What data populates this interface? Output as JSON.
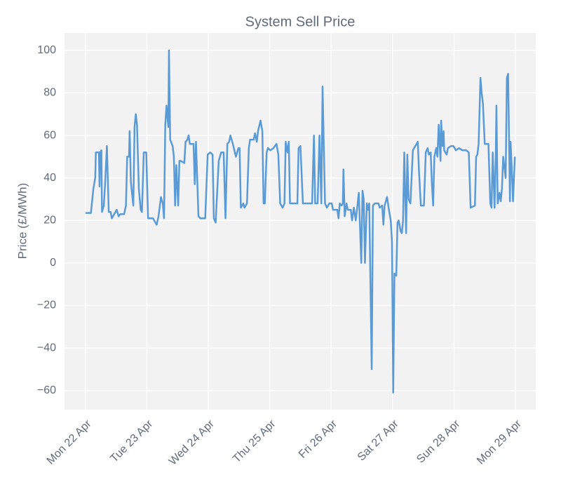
{
  "chart_data": {
    "type": "line",
    "title": "System Sell Price",
    "ylabel": "Price (£/MWh)",
    "color": "#5b9bd5",
    "grid": true,
    "xlim": [
      -0.34,
      7.33
    ],
    "ylim": [
      -69,
      108.2
    ],
    "xticks": [
      {
        "value": 0,
        "label": "Mon 22 Apr"
      },
      {
        "value": 1,
        "label": "Tue 23 Apr"
      },
      {
        "value": 2,
        "label": "Wed 24 Apr"
      },
      {
        "value": 3,
        "label": "Thu 25 Apr"
      },
      {
        "value": 4,
        "label": "Fri 26 Apr"
      },
      {
        "value": 5,
        "label": "Sat 27 Apr"
      },
      {
        "value": 6,
        "label": "Sun 28 Apr"
      },
      {
        "value": 7,
        "label": "Mon 29 Apr"
      }
    ],
    "yticks": [
      {
        "value": -60,
        "label": "−60"
      },
      {
        "value": -40,
        "label": "−40"
      },
      {
        "value": -20,
        "label": "−20"
      },
      0,
      20,
      40,
      60,
      80,
      100
    ],
    "x": [
      0,
      0.09,
      0.13,
      0.16,
      0.17,
      0.22,
      0.23,
      0.24,
      0.26,
      0.27,
      0.3,
      0.32,
      0.35,
      0.38,
      0.41,
      0.43,
      0.47,
      0.51,
      0.54,
      0.57,
      0.63,
      0.66,
      0.68,
      0.71,
      0.72,
      0.74,
      0.78,
      0.8,
      0.82,
      0.84,
      0.87,
      0.9,
      0.92,
      0.95,
      0.99,
      1.02,
      1.1,
      1.14,
      1.16,
      1.19,
      1.23,
      1.26,
      1.28,
      1.3,
      1.32,
      1.35,
      1.36,
      1.38,
      1.42,
      1.44,
      1.46,
      1.48,
      1.51,
      1.53,
      1.55,
      1.61,
      1.63,
      1.66,
      1.68,
      1.7,
      1.76,
      1.78,
      1.8,
      1.84,
      1.87,
      1.95,
      1.99,
      2.03,
      2.07,
      2.09,
      2.12,
      2.17,
      2.21,
      2.25,
      2.28,
      2.31,
      2.34,
      2.36,
      2.4,
      2.45,
      2.49,
      2.51,
      2.53,
      2.57,
      2.59,
      2.63,
      2.66,
      2.68,
      2.74,
      2.76,
      2.79,
      2.81,
      2.85,
      2.88,
      2.9,
      2.92,
      2.95,
      2.97,
      3.01,
      3.06,
      3.11,
      3.14,
      3.17,
      3.21,
      3.24,
      3.26,
      3.29,
      3.31,
      3.33,
      3.45,
      3.47,
      3.5,
      3.54,
      3.69,
      3.72,
      3.74,
      3.78,
      3.81,
      3.84,
      3.86,
      3.88,
      3.9,
      3.93,
      3.97,
      4.01,
      4.03,
      4.1,
      4.12,
      4.14,
      4.17,
      4.19,
      4.2,
      4.22,
      4.25,
      4.27,
      4.32,
      4.34,
      4.37,
      4.4,
      4.42,
      4.45,
      4.49,
      4.51,
      4.53,
      4.55,
      4.58,
      4.6,
      4.62,
      4.66,
      4.68,
      4.71,
      4.77,
      4.79,
      4.83,
      4.85,
      4.87,
      4.91,
      4.94,
      4.97,
      4.99,
      5.01,
      5.03,
      5.06,
      5.08,
      5.1,
      5.13,
      5.15,
      5.17,
      5.19,
      5.22,
      5.24,
      5.26,
      5.29,
      5.33,
      5.37,
      5.41,
      5.43,
      5.46,
      5.51,
      5.54,
      5.57,
      5.59,
      5.62,
      5.64,
      5.66,
      5.68,
      5.71,
      5.73,
      5.75,
      5.78,
      5.79,
      5.81,
      5.83,
      5.84,
      5.88,
      5.9,
      5.95,
      5.99,
      6.03,
      6.08,
      6.14,
      6.2,
      6.24,
      6.27,
      6.34,
      6.36,
      6.38,
      6.4,
      6.43,
      6.45,
      6.47,
      6.5,
      6.56,
      6.59,
      6.61,
      6.63,
      6.66,
      6.68,
      6.69,
      6.71,
      6.74,
      6.76,
      6.78,
      6.8,
      6.84,
      6.86,
      6.88,
      6.91,
      6.92,
      6.94,
      6.96,
      6.99
    ],
    "values": [
      23.5,
      23.5,
      35,
      40,
      52,
      52,
      36,
      52,
      53,
      24,
      27,
      37,
      55,
      24,
      24,
      21,
      23,
      25,
      22,
      23,
      23,
      27,
      50,
      50,
      62,
      38,
      27,
      64,
      70,
      65,
      35,
      25,
      24,
      52,
      52,
      21,
      21,
      19,
      18,
      22,
      31,
      28,
      21,
      65,
      74,
      64,
      100,
      58,
      55,
      50,
      27,
      46,
      27,
      48,
      48,
      47,
      57,
      58,
      60,
      56,
      56,
      37,
      57,
      22,
      21,
      21,
      51,
      52,
      51,
      21,
      19,
      48,
      52,
      52,
      21,
      56,
      57,
      60,
      56,
      50,
      54,
      54,
      26,
      28,
      26,
      28,
      54,
      58,
      58,
      61,
      57,
      62,
      67,
      62,
      28,
      28,
      52,
      54,
      53,
      54,
      56,
      51,
      28,
      26,
      28,
      57,
      52,
      57,
      28,
      28,
      54,
      55,
      28,
      28,
      60,
      28,
      28,
      60,
      28,
      83,
      55,
      28,
      26,
      28,
      28,
      25,
      25,
      21,
      28,
      27,
      28,
      44,
      22,
      28,
      25,
      25,
      20,
      26,
      20,
      25,
      33,
      0,
      34,
      30,
      0,
      28,
      25,
      28,
      -50,
      27,
      28,
      28,
      26,
      27,
      18,
      27,
      31,
      25,
      20,
      10,
      -61,
      -5,
      -6,
      19,
      20,
      15,
      14,
      20,
      52,
      14,
      51,
      30,
      28,
      53,
      55,
      57,
      43,
      27,
      27,
      52,
      54,
      51,
      52,
      37,
      27,
      50,
      54,
      50,
      65,
      48,
      67,
      55,
      62,
      53,
      51,
      54,
      55,
      55,
      53,
      54,
      53,
      53,
      52,
      26,
      27,
      50,
      51,
      56,
      87,
      80,
      75,
      56,
      56,
      28,
      26,
      52,
      26,
      52,
      74,
      28,
      33,
      29,
      35,
      50,
      40,
      87,
      89,
      29,
      57,
      44,
      29,
      50
    ]
  }
}
